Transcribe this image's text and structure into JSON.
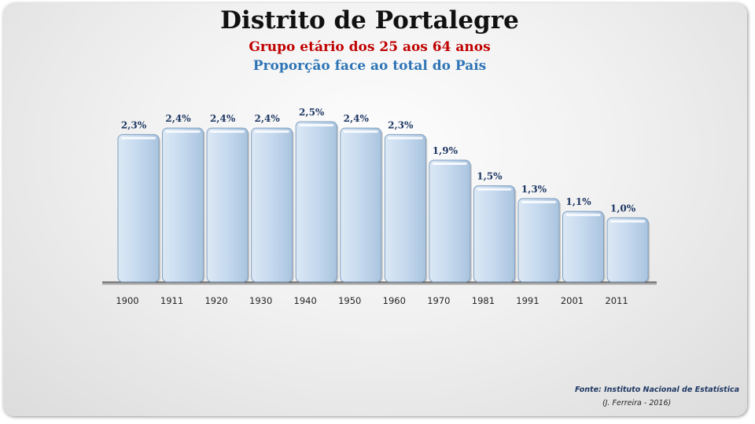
{
  "slide": {
    "title": "Distrito de Portalegre",
    "subtitle1": "Grupo etário dos 25 aos 64 anos",
    "subtitle2": "Proporção face ao total do País",
    "source": "Fonte: Instituto Nacional de Estatística",
    "author": "(J. Ferreira - 2016)"
  },
  "colors": {
    "subtitle1": "#c00000",
    "subtitle2": "#2e75b6",
    "bar_fill": "#c5d9ee",
    "bar_stroke": "#7f9fbf",
    "data_label": "#1f3864",
    "source": "#1f3864",
    "axis": "#595959"
  },
  "chart_data": {
    "type": "bar",
    "title": "Distrito de Portalegre",
    "subtitle": "Grupo etário dos 25 aos 64 anos",
    "categories": [
      "1900",
      "1911",
      "1920",
      "1930",
      "1940",
      "1950",
      "1960",
      "1970",
      "1981",
      "1991",
      "2001",
      "2011"
    ],
    "values": [
      2.3,
      2.4,
      2.4,
      2.4,
      2.5,
      2.4,
      2.3,
      1.9,
      1.5,
      1.3,
      1.1,
      1.0
    ],
    "data_labels": [
      "2,3%",
      "2,4%",
      "2,4%",
      "2,4%",
      "2,5%",
      "2,4%",
      "2,3%",
      "1,9%",
      "1,5%",
      "1,3%",
      "1,1%",
      "1,0%"
    ],
    "unit": "%",
    "ylim": [
      0,
      2.5
    ],
    "grid": false,
    "legend": "none"
  }
}
